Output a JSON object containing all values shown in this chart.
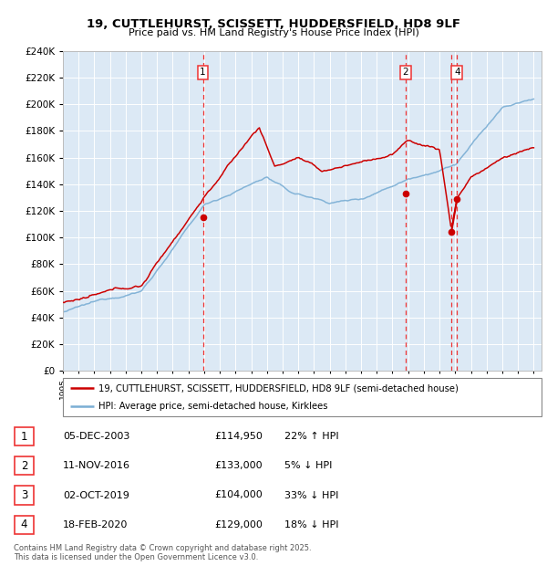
{
  "title": "19, CUTTLEHURST, SCISSETT, HUDDERSFIELD, HD8 9LF",
  "subtitle": "Price paid vs. HM Land Registry's House Price Index (HPI)",
  "legend_red": "19, CUTTLEHURST, SCISSETT, HUDDERSFIELD, HD8 9LF (semi-detached house)",
  "legend_blue": "HPI: Average price, semi-detached house, Kirklees",
  "footer": "Contains HM Land Registry data © Crown copyright and database right 2025.\nThis data is licensed under the Open Government Licence v3.0.",
  "transactions": [
    {
      "num": 1,
      "date": "05-DEC-2003",
      "price": "£114,950",
      "pct": "22% ↑ HPI"
    },
    {
      "num": 2,
      "date": "11-NOV-2016",
      "price": "£133,000",
      "pct": "5% ↓ HPI"
    },
    {
      "num": 3,
      "date": "02-OCT-2019",
      "price": "£104,000",
      "pct": "33% ↓ HPI"
    },
    {
      "num": 4,
      "date": "18-FEB-2020",
      "price": "£129,000",
      "pct": "18% ↓ HPI"
    }
  ],
  "ylim": [
    0,
    240000
  ],
  "ytick_vals": [
    0,
    20000,
    40000,
    60000,
    80000,
    100000,
    120000,
    140000,
    160000,
    180000,
    200000,
    220000,
    240000
  ],
  "xlim_start": 1995.0,
  "xlim_end": 2025.5,
  "bg_color": "#dce9f5",
  "grid_color": "#ffffff",
  "red_color": "#cc0000",
  "blue_color": "#7aaed4",
  "vline_color": "#ee3333",
  "vlines": [
    2003.92,
    2016.84,
    2019.75,
    2020.12
  ],
  "sale_points": [
    [
      2003.92,
      114950
    ],
    [
      2016.84,
      133000
    ],
    [
      2019.75,
      104000
    ],
    [
      2020.12,
      129000
    ]
  ],
  "num_labels": [
    [
      2003.92,
      "1"
    ],
    [
      2016.84,
      "2"
    ],
    [
      2020.12,
      "4"
    ]
  ]
}
